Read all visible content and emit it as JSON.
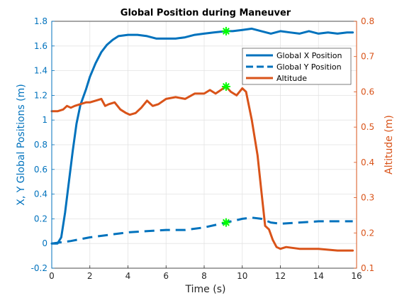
{
  "chart_data": {
    "type": "line",
    "title": "Global Position during Maneuver",
    "xlabel": "Time (s)",
    "ylabel_left": "X, Y Global Positions (m)",
    "ylabel_right": "Altitude (m)",
    "xlim": [
      0,
      16
    ],
    "ylim_left": [
      -0.2,
      1.8
    ],
    "ylim_right": [
      0.1,
      0.8
    ],
    "xticks": [
      "0",
      "2",
      "4",
      "6",
      "8",
      "10",
      "12",
      "14",
      "16"
    ],
    "yticks_left": [
      "-0.2",
      "0",
      "0.2",
      "0.4",
      "0.6",
      "0.8",
      "1",
      "1.2",
      "1.4",
      "1.6",
      "1.8"
    ],
    "yticks_right": [
      "0.1",
      "0.2",
      "0.3",
      "0.4",
      "0.5",
      "0.6",
      "0.7",
      "0.8"
    ],
    "grid": true,
    "legend_position": "top-right",
    "colors": {
      "left_axis": "#0072BD",
      "right_axis": "#D95319",
      "marker": "#00FF00"
    },
    "series": [
      {
        "name": "Global X Position",
        "axis": "left",
        "style": "solid",
        "color": "#0072BD",
        "x": [
          0,
          0.3,
          0.5,
          0.7,
          0.9,
          1.1,
          1.3,
          1.5,
          1.8,
          2.0,
          2.3,
          2.6,
          2.9,
          3.2,
          3.5,
          4.0,
          4.5,
          5.0,
          5.5,
          6.0,
          6.5,
          7.0,
          7.5,
          8.0,
          8.5,
          9.15,
          9.5,
          10.0,
          10.5,
          11.0,
          11.5,
          12.0,
          12.5,
          13.0,
          13.5,
          14.0,
          14.5,
          15.0,
          15.5,
          15.8
        ],
        "y": [
          0.0,
          0.0,
          0.05,
          0.25,
          0.5,
          0.75,
          0.97,
          1.12,
          1.25,
          1.35,
          1.46,
          1.55,
          1.61,
          1.65,
          1.68,
          1.69,
          1.69,
          1.68,
          1.66,
          1.66,
          1.66,
          1.67,
          1.69,
          1.7,
          1.71,
          1.72,
          1.72,
          1.73,
          1.74,
          1.72,
          1.7,
          1.72,
          1.71,
          1.7,
          1.72,
          1.7,
          1.71,
          1.7,
          1.71,
          1.71
        ]
      },
      {
        "name": "Global Y Position",
        "axis": "left",
        "style": "dashed",
        "color": "#0072BD",
        "x": [
          0,
          1,
          2,
          3,
          4,
          5,
          6,
          7,
          8,
          9.15,
          10,
          10.5,
          11,
          11.5,
          12,
          13,
          14,
          15,
          15.8
        ],
        "y": [
          0.0,
          0.02,
          0.05,
          0.07,
          0.09,
          0.1,
          0.11,
          0.11,
          0.13,
          0.17,
          0.2,
          0.21,
          0.2,
          0.17,
          0.16,
          0.17,
          0.18,
          0.18,
          0.18
        ]
      },
      {
        "name": "Altitude",
        "axis": "right",
        "style": "solid",
        "color": "#D95319",
        "x": [
          0,
          0.3,
          0.6,
          0.8,
          1.0,
          1.2,
          1.5,
          1.8,
          2.0,
          2.3,
          2.6,
          2.8,
          3.0,
          3.3,
          3.6,
          3.9,
          4.1,
          4.4,
          4.7,
          5.0,
          5.3,
          5.6,
          6.0,
          6.5,
          7.0,
          7.5,
          8.0,
          8.3,
          8.6,
          9.15,
          9.4,
          9.7,
          10.0,
          10.2,
          10.5,
          10.8,
          11.0,
          11.2,
          11.4,
          11.6,
          11.8,
          12.0,
          12.3,
          13.0,
          14.0,
          15.0,
          15.8
        ],
        "y": [
          0.545,
          0.545,
          0.55,
          0.56,
          0.555,
          0.56,
          0.565,
          0.57,
          0.57,
          0.575,
          0.58,
          0.56,
          0.565,
          0.57,
          0.55,
          0.54,
          0.535,
          0.54,
          0.555,
          0.575,
          0.56,
          0.565,
          0.58,
          0.585,
          0.58,
          0.595,
          0.595,
          0.605,
          0.595,
          0.615,
          0.6,
          0.59,
          0.61,
          0.6,
          0.52,
          0.42,
          0.32,
          0.22,
          0.21,
          0.18,
          0.16,
          0.155,
          0.16,
          0.155,
          0.155,
          0.15,
          0.15
        ]
      }
    ],
    "markers": [
      {
        "axis": "left",
        "x": 9.15,
        "y": 1.72
      },
      {
        "axis": "left",
        "x": 9.15,
        "y": 0.17
      },
      {
        "axis": "right",
        "x": 9.15,
        "y": 0.615
      }
    ]
  }
}
